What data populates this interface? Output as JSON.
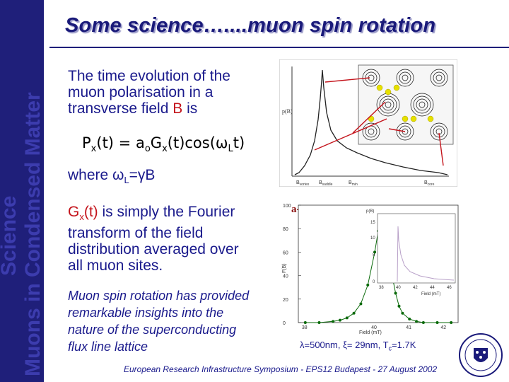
{
  "sidebar": {
    "text_line1": "Muons in Condensed Matter",
    "text_line2": "Science"
  },
  "title": "Some science…....muon spin rotation",
  "intro": {
    "line1": "The time evolution of  the",
    "line2": "muon polarisation in a",
    "line3_prefix": "transverse field ",
    "line3_b": "B",
    "line3_suffix": " is"
  },
  "formula": {
    "P": "P",
    "x": "x",
    "t": "(t) = a",
    "o": "o",
    "G": "G",
    "x2": "x",
    "rest": "(t)cos(ω",
    "L": "L",
    "end": "t)"
  },
  "where": {
    "prefix": "where  ω",
    "sub": "L",
    "suffix": "=γB"
  },
  "gx": {
    "G": "G",
    "sub": "x",
    "t": "(t)",
    "rest1": " is simply the Fourier",
    "line2": "transform of the field",
    "line3": "distribution averaged over",
    "line4": "all muon sites."
  },
  "italic": {
    "line1": "Muon spin rotation has provided",
    "line2": "remarkable insights into the",
    "line3": "nature of the superconducting",
    "line4": "flux line lattice"
  },
  "fig1": {
    "ylabel": "p(B)",
    "ticks": [
      "B",
      "B",
      "B",
      "B"
    ],
    "tick_subs": [
      "vortex",
      "saddle",
      "min",
      "core"
    ]
  },
  "fig2": {
    "label_prefix": "a-Zr",
    "label_sub1": "76",
    "label_mid": "Fe",
    "label_sub2": "24",
    "ylabel": "F(B)",
    "xlabel": "Field (mT)",
    "yticks": [
      "100",
      "80",
      "60",
      "40",
      "20",
      "0"
    ],
    "xticks": [
      "38",
      "40",
      "41",
      "42"
    ],
    "inset_yticks": [
      "15",
      "10",
      "5",
      "0"
    ],
    "inset_xticks": [
      "38",
      "40",
      "42",
      "44",
      "46"
    ],
    "inset_xlabel": "Field (mT)",
    "inset_ylabel": "p(B)"
  },
  "caption": {
    "lambda": "λ=500nm, ξ= 29nm, T",
    "sub": "c",
    "end": "=1.7K"
  },
  "footer": "European Research Infrastructure Symposium - EPS12 Budapest - 27 August 2002",
  "chart_data": [
    {
      "type": "line",
      "title": "",
      "xlabel": "",
      "ylabel": "p(B)",
      "categories": [
        "B vortex",
        "B saddle",
        "B min",
        "B core"
      ],
      "series": [
        {
          "values": [
            0.15,
            1.0,
            0.4,
            0.05
          ]
        }
      ]
    },
    {
      "type": "scatter",
      "title": "",
      "xlabel": "Field (mT)",
      "ylabel": "F(B)",
      "x": [
        38.0,
        38.4,
        38.8,
        39.0,
        39.2,
        39.4,
        39.6,
        39.8,
        40.0,
        40.1,
        40.2,
        40.3,
        40.4,
        40.5,
        40.6,
        40.7,
        40.8,
        41.0,
        41.2,
        41.4,
        41.8,
        42.2
      ],
      "series": [
        {
          "values": [
            0,
            0,
            1,
            2,
            4,
            8,
            16,
            32,
            60,
            78,
            90,
            82,
            60,
            40,
            25,
            14,
            8,
            3,
            1,
            0,
            0,
            0
          ]
        }
      ],
      "xlim": [
        37.8,
        42.4
      ],
      "ylim": [
        0,
        100
      ]
    }
  ]
}
